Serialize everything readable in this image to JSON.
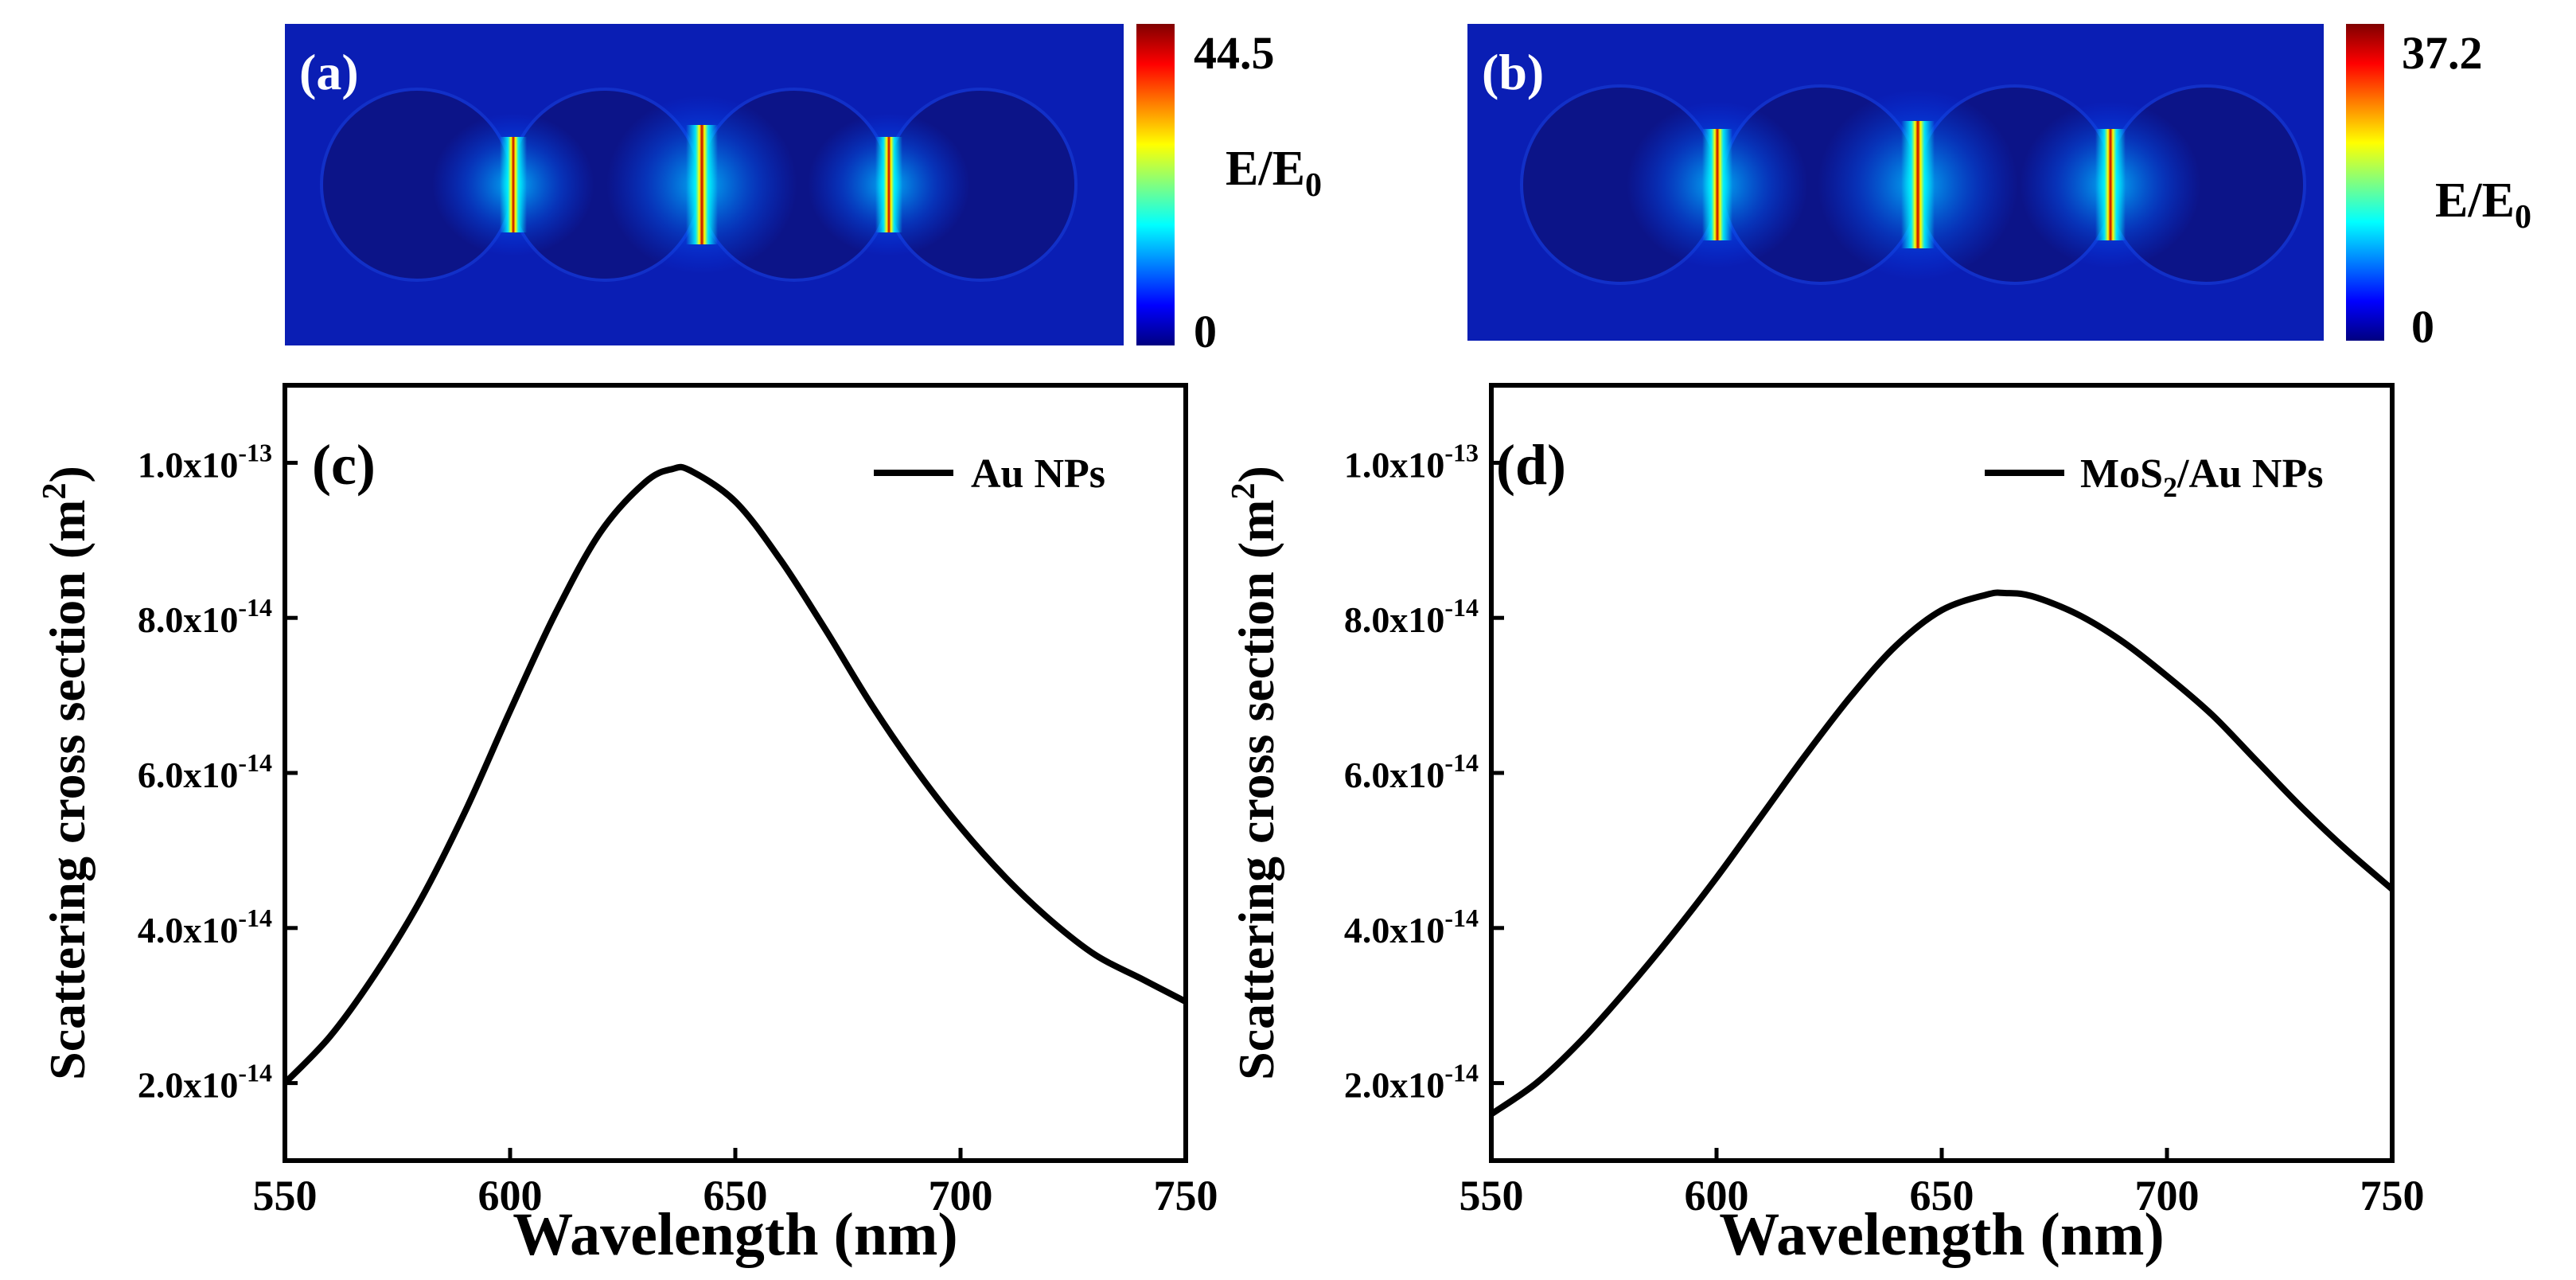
{
  "colors": {
    "colormap": [
      "#000080",
      "#0000ff",
      "#0080ff",
      "#00ffff",
      "#80ff80",
      "#ffff00",
      "#ff8000",
      "#ff0000",
      "#800000"
    ],
    "field_background": "#0a1eb4",
    "particle_fill": "#0c1488",
    "line": "#000000"
  },
  "field_maps": [
    {
      "panel_label": "(a)",
      "colorbar_max": "44.5",
      "colorbar_min": "0",
      "colorbar_title": "E/E",
      "colorbar_title_sub": "0"
    },
    {
      "panel_label": "(b)",
      "colorbar_max": "37.2",
      "colorbar_min": "0",
      "colorbar_title": "E/E",
      "colorbar_title_sub": "0"
    }
  ],
  "chart_data": [
    {
      "type": "line",
      "panel_label": "(c)",
      "xlabel": "Wavelength (nm)",
      "ylabel": "Scattering cross section  (m",
      "ylabel_sup": "2",
      "ylabel_close": ")",
      "xlim": [
        550,
        750
      ],
      "ylim": [
        1e-14,
        1.1e-13
      ],
      "xticks": [
        "550",
        "600",
        "650",
        "700",
        "750"
      ],
      "yticks": [
        {
          "base": "2.0x10",
          "exp": "-14"
        },
        {
          "base": "4.0x10",
          "exp": "-14"
        },
        {
          "base": "6.0x10",
          "exp": "-14"
        },
        {
          "base": "8.0x10",
          "exp": "-14"
        },
        {
          "base": "1.0x10",
          "exp": "-13"
        }
      ],
      "legend": {
        "text": "Au NPs",
        "sub": "",
        "text_after": "",
        "position": "top-right"
      },
      "series": [
        {
          "name": "Au NPs",
          "x": [
            550,
            560,
            570,
            580,
            590,
            600,
            610,
            620,
            630,
            636,
            640,
            650,
            660,
            670,
            680,
            690,
            700,
            710,
            720,
            730,
            740,
            750
          ],
          "y": [
            2e-14,
            2.6e-14,
            3.4e-14,
            4.35e-14,
            5.5e-14,
            6.8e-14,
            8.05e-14,
            9.1e-14,
            9.75e-14,
            9.92e-14,
            9.9e-14,
            9.5e-14,
            8.75e-14,
            7.85e-14,
            6.9e-14,
            6.05e-14,
            5.3e-14,
            4.65e-14,
            4.1e-14,
            3.65e-14,
            3.35e-14,
            3.05e-14
          ]
        }
      ]
    },
    {
      "type": "line",
      "panel_label": "(d)",
      "xlabel": "Wavelength (nm)",
      "ylabel": "Scattering cross section (m",
      "ylabel_sup": "2",
      "ylabel_close": ")",
      "xlim": [
        550,
        750
      ],
      "ylim": [
        1e-14,
        1.1e-13
      ],
      "xticks": [
        "550",
        "600",
        "650",
        "700",
        "750"
      ],
      "yticks": [
        {
          "base": "2.0x10",
          "exp": "-14"
        },
        {
          "base": "4.0x10",
          "exp": "-14"
        },
        {
          "base": "6.0x10",
          "exp": "-14"
        },
        {
          "base": "8.0x10",
          "exp": "-14"
        },
        {
          "base": "1.0x10",
          "exp": "-13"
        }
      ],
      "legend": {
        "text": "MoS",
        "sub": "2",
        "text_after": "/Au NPs",
        "position": "top-right"
      },
      "series": [
        {
          "name": "MoS2/Au NPs",
          "x": [
            550,
            560,
            570,
            580,
            590,
            600,
            610,
            620,
            630,
            640,
            650,
            660,
            664,
            670,
            680,
            690,
            700,
            710,
            720,
            730,
            740,
            750
          ],
          "y": [
            1.6e-14,
            2e-14,
            2.55e-14,
            3.2e-14,
            3.9e-14,
            4.65e-14,
            5.45e-14,
            6.25e-14,
            7e-14,
            7.65e-14,
            8.1e-14,
            8.3e-14,
            8.32e-14,
            8.28e-14,
            8.05e-14,
            7.7e-14,
            7.25e-14,
            6.75e-14,
            6.15e-14,
            5.55e-14,
            5e-14,
            4.5e-14
          ]
        }
      ]
    }
  ]
}
